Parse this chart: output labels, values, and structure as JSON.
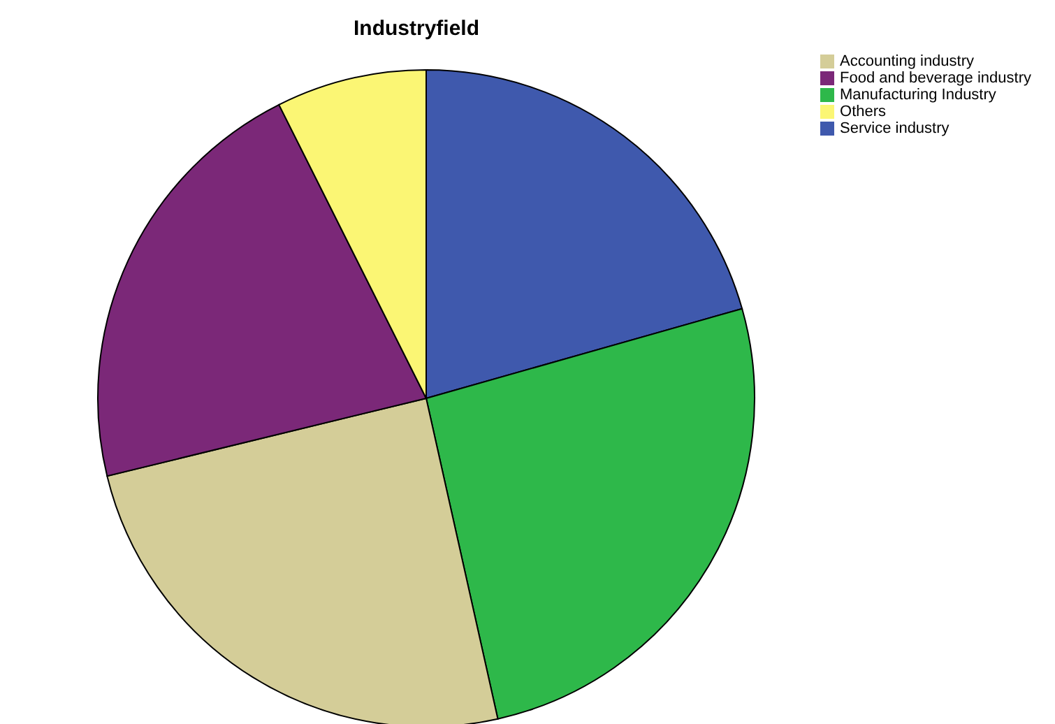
{
  "chart_data": {
    "type": "pie",
    "title": "Industryfield",
    "categories": [
      "Service industry",
      "Manufacturing Industry",
      "Accounting industry",
      "Food and beverage industry",
      "Others"
    ],
    "values": [
      20.6,
      25.9,
      24.7,
      21.4,
      7.4
    ],
    "colors": [
      "#3f59ad",
      "#2eb84a",
      "#d4cd98",
      "#7b2878",
      "#fbf674"
    ],
    "legend": "top right"
  }
}
